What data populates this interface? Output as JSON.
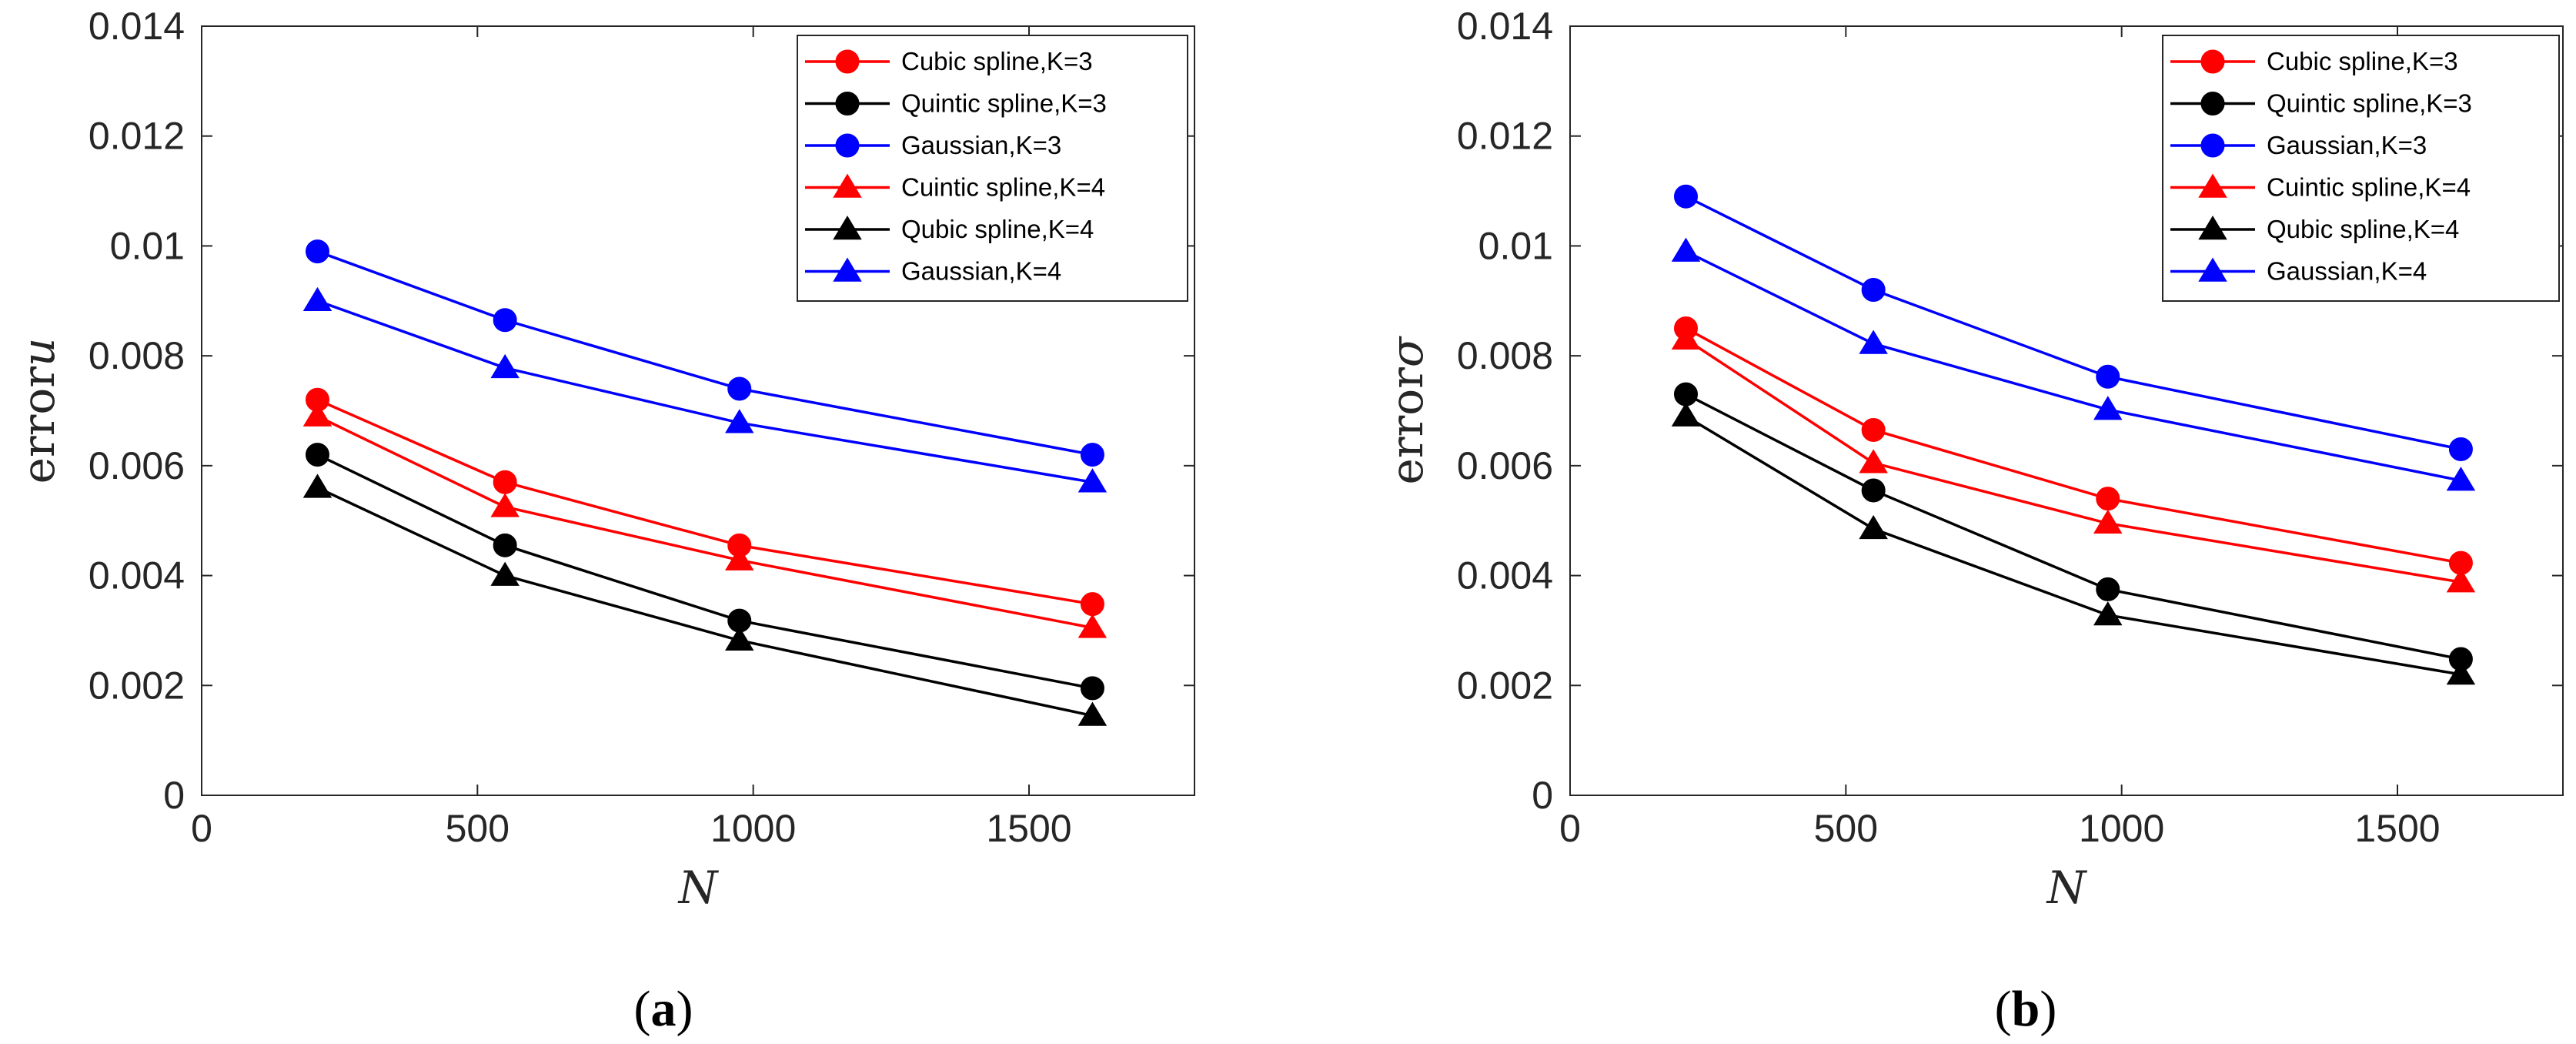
{
  "chart_data": [
    {
      "type": "line",
      "panel_label": "a",
      "xlabel": "N",
      "ylabel_prefix": "error",
      "ylabel_var": "u",
      "xlim": [
        0,
        1800
      ],
      "ylim": [
        0,
        0.014
      ],
      "xticks": [
        0,
        500,
        1000,
        1500
      ],
      "xtick_labels": [
        "0",
        "500",
        "1000",
        "1500"
      ],
      "yticks": [
        0,
        0.002,
        0.004,
        0.006,
        0.008,
        0.01,
        0.012,
        0.014
      ],
      "ytick_labels": [
        "0",
        "0.002",
        "0.004",
        "0.006",
        "0.008",
        "0.01",
        "0.012",
        "0.014"
      ],
      "legend_position": "top-right",
      "x": [
        210,
        550,
        975,
        1615
      ],
      "series": [
        {
          "name": "Cubic spline,K=3",
          "color": "#ff0000",
          "marker": "circle",
          "values": [
            0.0072,
            0.0057,
            0.00455,
            0.00348
          ]
        },
        {
          "name": "Quintic spline,K=3",
          "color": "#000000",
          "marker": "circle",
          "values": [
            0.0062,
            0.00455,
            0.00318,
            0.00195
          ]
        },
        {
          "name": "Gaussian,K=3",
          "color": "#0000ff",
          "marker": "circle",
          "values": [
            0.0099,
            0.00865,
            0.0074,
            0.0062
          ]
        },
        {
          "name": "Cuintic spline,K=4",
          "color": "#ff0000",
          "marker": "triangle",
          "values": [
            0.0069,
            0.00525,
            0.00428,
            0.00305
          ]
        },
        {
          "name": "Qubic spline,K=4",
          "color": "#000000",
          "marker": "triangle",
          "values": [
            0.0056,
            0.004,
            0.00282,
            0.00145
          ]
        },
        {
          "name": "Gaussian,K=4",
          "color": "#0000ff",
          "marker": "triangle",
          "values": [
            0.009,
            0.00778,
            0.00678,
            0.0057
          ]
        }
      ]
    },
    {
      "type": "line",
      "panel_label": "b",
      "xlabel": "N",
      "ylabel_prefix": "error",
      "ylabel_var": "σ",
      "xlim": [
        0,
        1800
      ],
      "ylim": [
        0,
        0.014
      ],
      "xticks": [
        0,
        500,
        1000,
        1500
      ],
      "xtick_labels": [
        "0",
        "500",
        "1000",
        "1500"
      ],
      "yticks": [
        0,
        0.002,
        0.004,
        0.006,
        0.008,
        0.01,
        0.012,
        0.014
      ],
      "ytick_labels": [
        "0",
        "0.002",
        "0.004",
        "0.006",
        "0.008",
        "0.01",
        "0.012",
        "0.014"
      ],
      "legend_position": "top-right",
      "x": [
        210,
        550,
        975,
        1615
      ],
      "series": [
        {
          "name": "Cubic spline,K=3",
          "color": "#ff0000",
          "marker": "circle",
          "values": [
            0.0085,
            0.00665,
            0.0054,
            0.00423
          ]
        },
        {
          "name": "Quintic spline,K=3",
          "color": "#000000",
          "marker": "circle",
          "values": [
            0.0073,
            0.00555,
            0.00375,
            0.00248
          ]
        },
        {
          "name": "Gaussian,K=3",
          "color": "#0000ff",
          "marker": "circle",
          "values": [
            0.0109,
            0.0092,
            0.00762,
            0.0063
          ]
        },
        {
          "name": "Cuintic spline,K=4",
          "color": "#ff0000",
          "marker": "triangle",
          "values": [
            0.0083,
            0.00605,
            0.00495,
            0.00388
          ]
        },
        {
          "name": "Qubic spline,K=4",
          "color": "#000000",
          "marker": "triangle",
          "values": [
            0.0069,
            0.00485,
            0.00328,
            0.0022
          ]
        },
        {
          "name": "Gaussian,K=4",
          "color": "#0000ff",
          "marker": "triangle",
          "values": [
            0.0099,
            0.00822,
            0.00702,
            0.00573
          ]
        }
      ]
    }
  ]
}
